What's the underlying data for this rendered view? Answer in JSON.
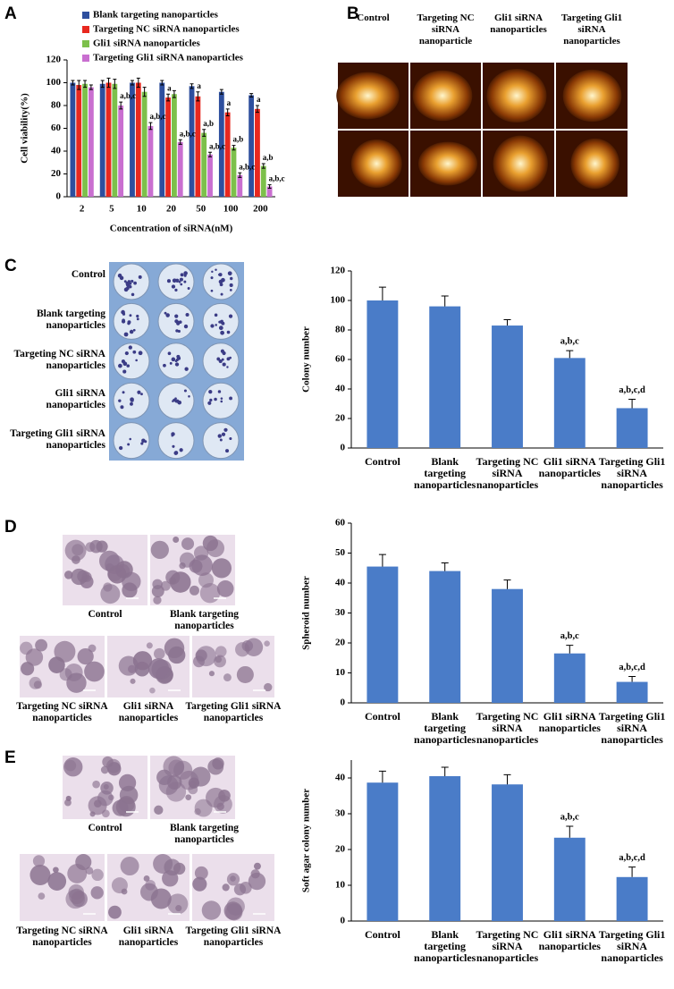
{
  "chart_data": [
    {
      "type": "bar",
      "panel_label": "A",
      "x_label": "Concentration of siRNA(nM)",
      "y_label": "Cell viability(%)",
      "categories": [
        "2",
        "5",
        "10",
        "20",
        "50",
        "100",
        "200"
      ],
      "ylim": [
        0,
        120
      ],
      "yticks": [
        0,
        20,
        40,
        60,
        80,
        100,
        120
      ],
      "series": [
        {
          "name": "Blank targeting nanoparticles",
          "color": "#2e4f9e",
          "values": [
            100,
            99,
            100,
            100,
            97,
            92,
            89
          ],
          "errors": [
            2,
            3,
            2,
            2,
            2,
            2,
            1.5
          ],
          "annotations": [
            null,
            null,
            null,
            null,
            null,
            null,
            null
          ]
        },
        {
          "name": "Targeting NC siRNA nanoparticles",
          "color": "#e8281f",
          "values": [
            98,
            100,
            100,
            87,
            88,
            74,
            77
          ],
          "errors": [
            4,
            4,
            4,
            3,
            4,
            3,
            3
          ],
          "annotations": [
            null,
            null,
            null,
            "a",
            "a",
            "a",
            "a"
          ]
        },
        {
          "name": "Gli1 siRNA nanoparticles",
          "color": "#7dc04b",
          "values": [
            99,
            99,
            92,
            90,
            56,
            43,
            27
          ],
          "errors": [
            3,
            4,
            4,
            3,
            3,
            2,
            2
          ],
          "annotations": [
            null,
            null,
            null,
            null,
            "a,b",
            "a,b",
            "a,b"
          ]
        },
        {
          "name": "Targeting Gli1 siRNA nanoparticles",
          "color": "#c96fd0",
          "values": [
            96,
            80,
            62,
            48,
            37,
            19,
            9
          ],
          "errors": [
            2,
            3,
            3,
            2,
            2,
            2,
            1.5
          ],
          "annotations": [
            null,
            "a,b,c",
            "a,b,c",
            "a,b,c",
            "a,b,c",
            "a,b,c",
            "a,b,c"
          ]
        }
      ]
    },
    {
      "type": "bar",
      "panel_label": "C",
      "y_label": "Colony number",
      "categories": [
        "Control",
        "Blank targeting nanoparticles",
        "Targeting NC siRNA nanoparticles",
        "Gli1 siRNA nanoparticles",
        "Targeting Gli1 siRNA nanoparticles"
      ],
      "values": [
        100,
        96,
        83,
        61,
        27
      ],
      "errors": [
        9,
        7,
        4,
        5,
        6
      ],
      "annotations": [
        null,
        null,
        null,
        "a,b,c",
        "a,b,c,d"
      ],
      "color": "#4a7cc8",
      "ylim": [
        0,
        120
      ],
      "yticks": [
        0,
        20,
        40,
        60,
        80,
        100,
        120
      ]
    },
    {
      "type": "bar",
      "panel_label": "D",
      "y_label": "Spheroid number",
      "categories": [
        "Control",
        "Blank targeting nanoparticles",
        "Targeting NC siRNA nanoparticles",
        "Gli1 siRNA nanoparticles",
        "Targeting Gli1 siRNA nanoparticles"
      ],
      "values": [
        45.5,
        44,
        38,
        16.5,
        7
      ],
      "errors": [
        4,
        2.7,
        3,
        2.7,
        1.8
      ],
      "annotations": [
        null,
        null,
        null,
        "a,b,c",
        "a,b,c,d"
      ],
      "color": "#4a7cc8",
      "ylim": [
        0,
        60
      ],
      "yticks": [
        0,
        10,
        20,
        30,
        40,
        50,
        60
      ]
    },
    {
      "type": "bar",
      "panel_label": "E",
      "y_label": "Soft agar colony number",
      "categories": [
        "Control",
        "Blank targeting nanoparticles",
        "Targeting NC siRNA nanoparticles",
        "Gli1 siRNA nanoparticles",
        "Targeting Gli1 siRNA nanoparticles"
      ],
      "values": [
        38.7,
        40.5,
        38.2,
        23.3,
        12.3
      ],
      "errors": [
        3.2,
        2.5,
        2.7,
        3.2,
        2.8
      ],
      "annotations": [
        null,
        null,
        null,
        "a,b,c",
        "a,b,c,d"
      ],
      "color": "#4a7cc8",
      "ylim": [
        0,
        45
      ],
      "yticks": [
        0,
        10,
        20,
        30,
        40
      ]
    }
  ],
  "panels": {
    "B": {
      "label": "B",
      "captions": [
        "Control",
        "Targeting NC siRNA nanoparticle",
        "Gli1 siRNA nanoparticles",
        "Targeting Gli1 siRNA nanoparticles"
      ]
    },
    "C": {
      "row_labels": [
        "Control",
        "Blank targeting nanoparticles",
        "Targeting NC siRNA nanoparticles",
        "Gli1 siRNA nanoparticles",
        "Targeting Gli1 siRNA nanoparticles"
      ]
    },
    "D": {
      "captions": [
        "Control",
        "Blank targeting nanoparticles",
        "Targeting NC siRNA nanoparticles",
        "Gli1 siRNA nanoparticles",
        "Targeting Gli1 siRNA nanoparticles"
      ]
    },
    "E": {
      "captions": [
        "Control",
        "Blank targeting nanoparticles",
        "Targeting NC siRNA nanoparticles",
        "Gli1 siRNA nanoparticles",
        "Targeting Gli1 siRNA nanoparticles"
      ]
    }
  }
}
